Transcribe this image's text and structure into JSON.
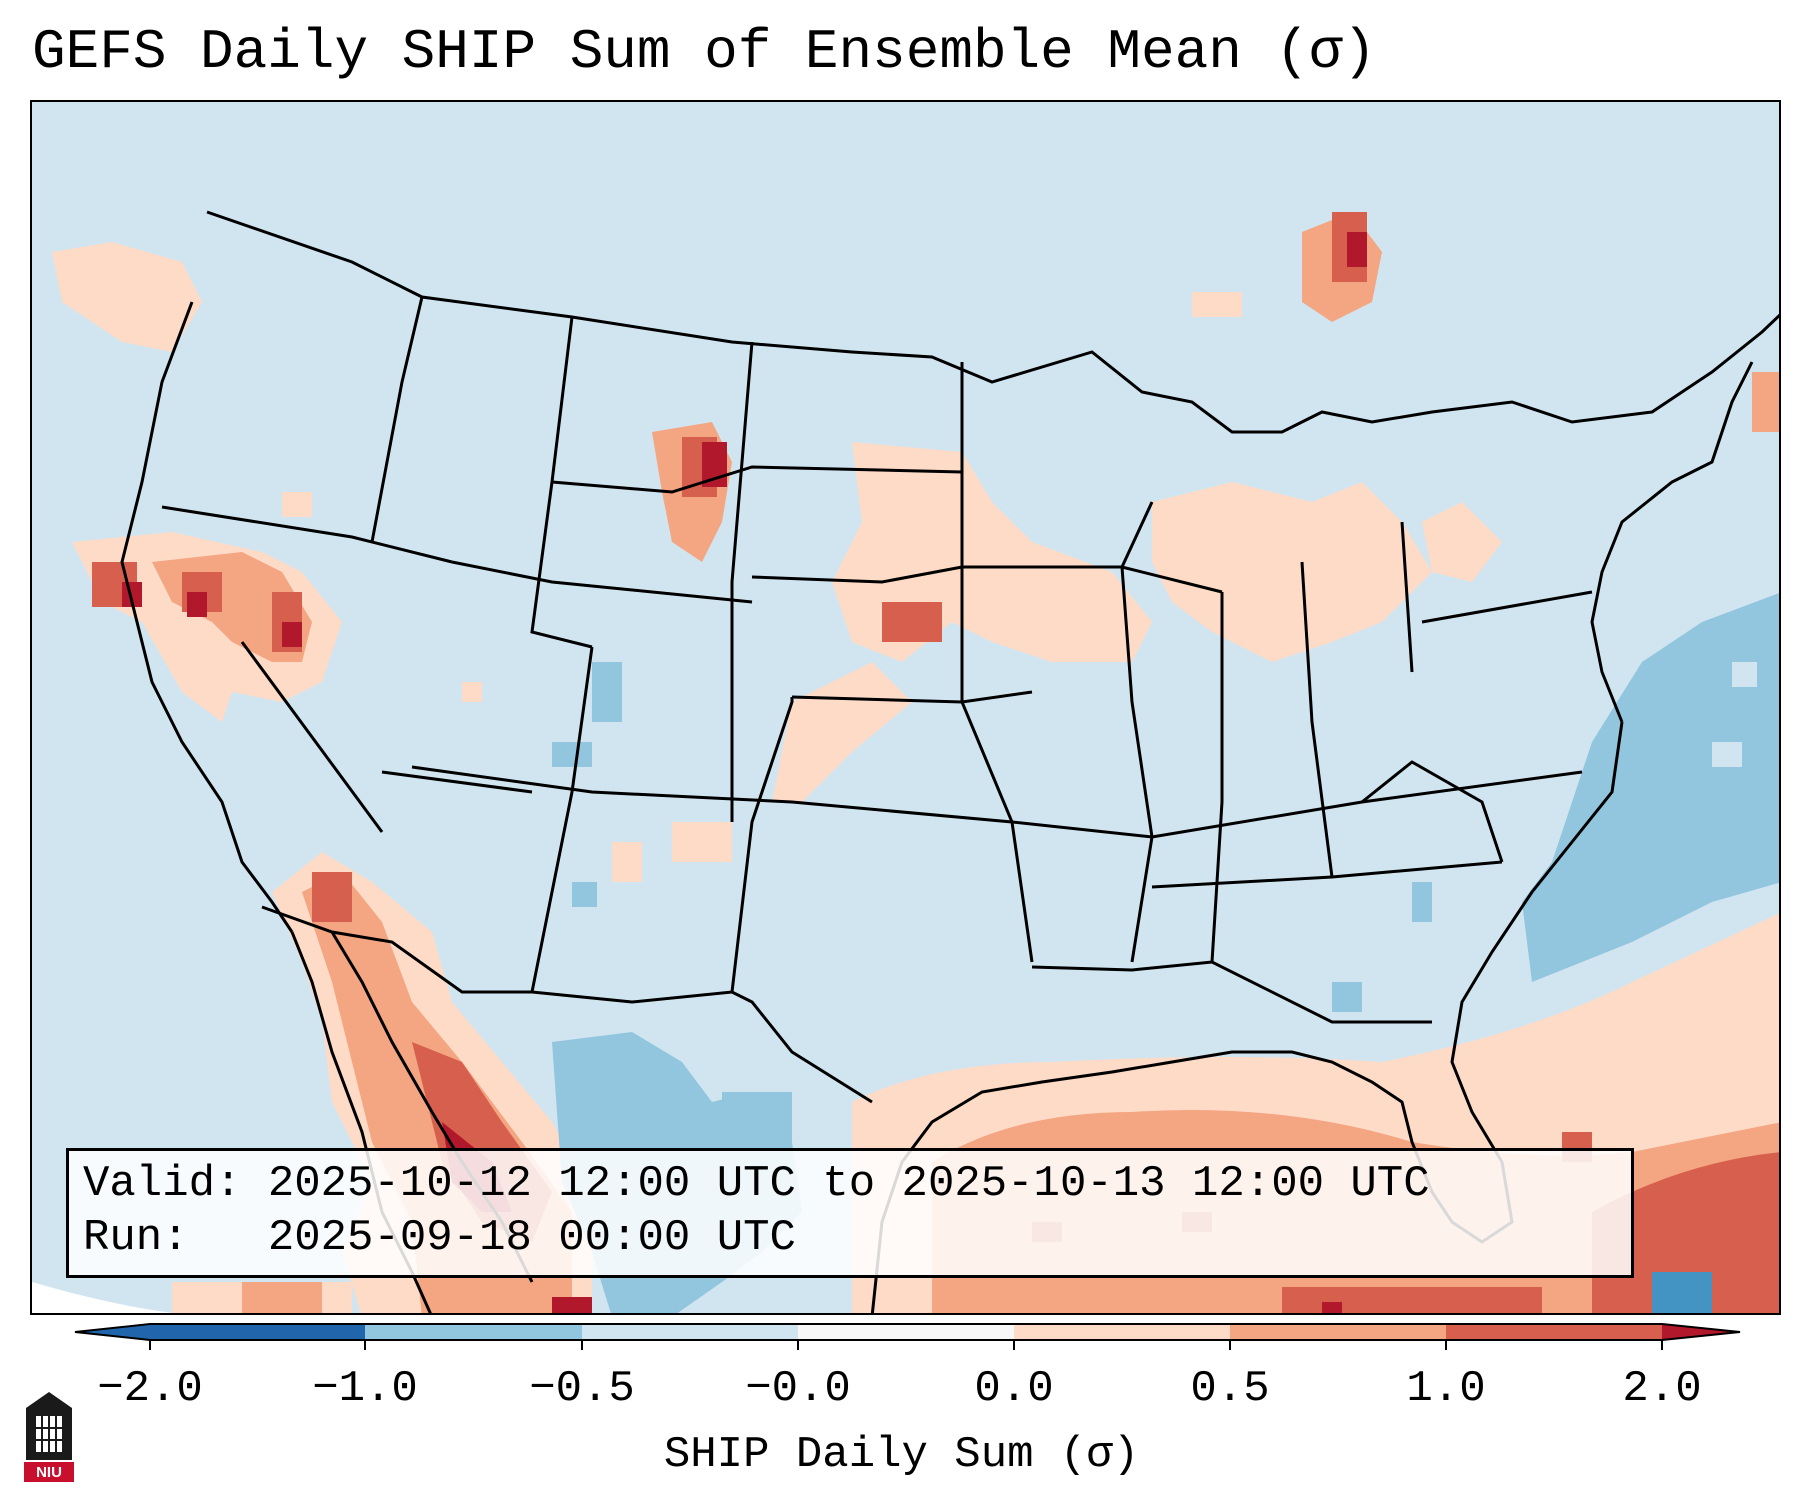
{
  "title": "GEFS Daily SHIP Sum of Ensemble Mean (σ)",
  "info": {
    "valid": "Valid: 2025-10-12 12:00 UTC to 2025-10-13 12:00 UTC",
    "run": "Run:   2025-09-18 00:00 UTC"
  },
  "colorbar": {
    "label": "SHIP Daily Sum (σ)",
    "ticks": [
      "−2.0",
      "−1.0",
      "−0.5",
      "−0.0",
      "0.0",
      "0.5",
      "1.0",
      "2.0"
    ],
    "colors": {
      "under": "#2166ac",
      "bins": [
        "#4393c3",
        "#92c5de",
        "#d1e5f0",
        "#f7f7f7",
        "#fddbc7",
        "#f4a582",
        "#d6604d"
      ],
      "over": "#b2182b"
    }
  },
  "logo": {
    "text": "NIU"
  }
}
